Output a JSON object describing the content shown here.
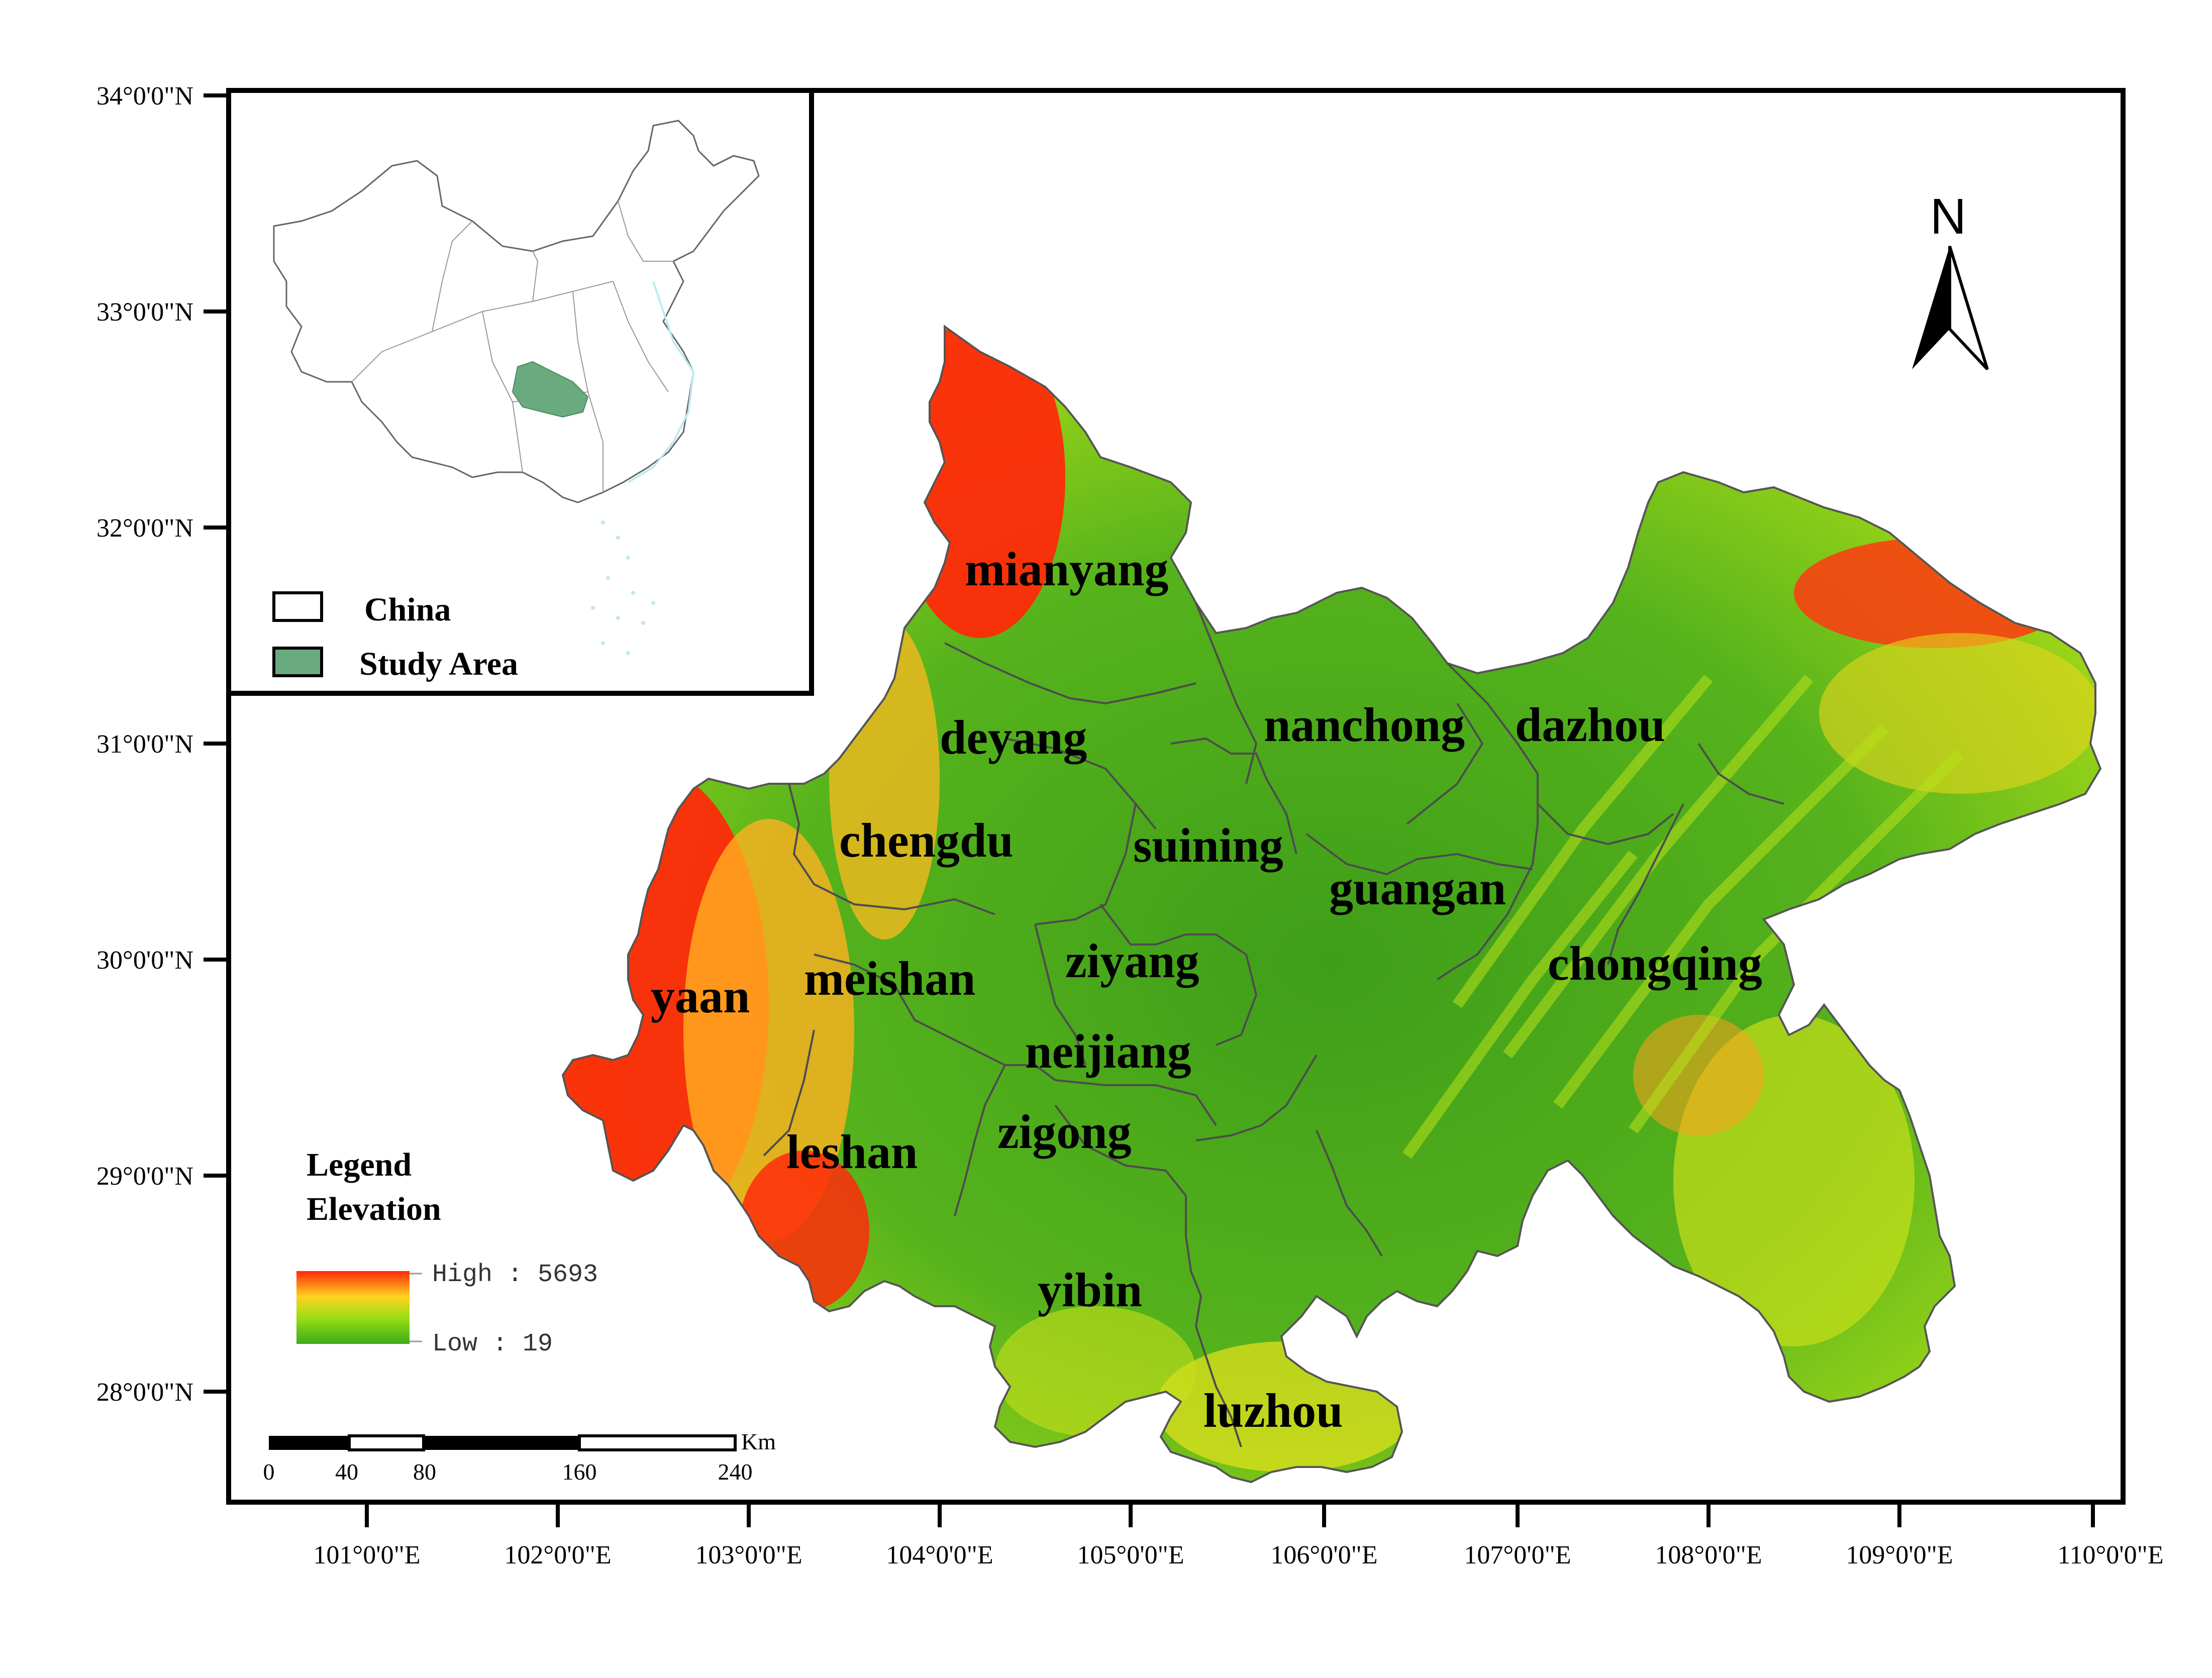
{
  "latitude_labels": [
    "34°0'0\"N",
    "33°0'0\"N",
    "32°0'0\"N",
    "31°0'0\"N",
    "30°0'0\"N",
    "29°0'0\"N",
    "28°0'0\"N"
  ],
  "longitude_labels": [
    "101°0'0\"E",
    "102°0'0\"E",
    "103°0'0\"E",
    "104°0'0\"E",
    "105°0'0\"E",
    "106°0'0\"E",
    "107°0'0\"E",
    "108°0'0\"E",
    "109°0'0\"E",
    "110°0'0\"E"
  ],
  "cities": [
    "mianyang",
    "deyang",
    "nanchong",
    "dazhou",
    "chengdu",
    "suining",
    "guangan",
    "chongqing",
    "ziyang",
    "meishan",
    "yaan",
    "neijiang",
    "zigong",
    "leshan",
    "yibin",
    "luzhou"
  ],
  "inset": {
    "legend": [
      {
        "label": "China",
        "color": "#ffffff"
      },
      {
        "label": "Study Area",
        "color": "#6aaa7f"
      }
    ]
  },
  "legend": {
    "title": "Legend",
    "subtitle": "Elevation",
    "high_label": "High : 5693",
    "low_label": "Low : 19",
    "colors": [
      "#ff2a0a",
      "#ffd21e",
      "#98de16",
      "#3caa1a"
    ]
  },
  "scale_bar": {
    "unit": "Km",
    "ticks": [
      "0",
      "40",
      "80",
      "160",
      "240"
    ]
  },
  "north_arrow": {
    "label": "N"
  }
}
